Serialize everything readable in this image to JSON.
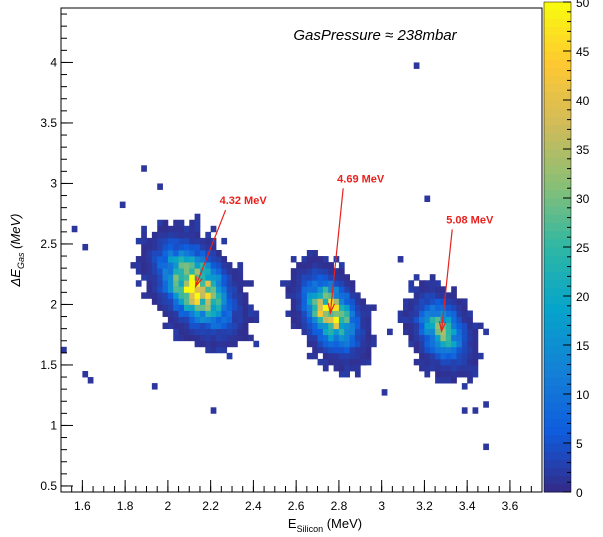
{
  "chart_data": {
    "type": "heatmap",
    "annotation": "GasPressure ≈ 238mbar",
    "xlabel_main": "E",
    "xlabel_sub": "Silicon",
    "xlabel_unit": "(MeV)",
    "ylabel_main": "ΔE",
    "ylabel_sub": "Gas",
    "ylabel_unit": "(MeV)",
    "xlim": [
      1.5,
      3.75
    ],
    "ylim": [
      0.45,
      4.45
    ],
    "xticks": [
      1.6,
      1.8,
      2,
      2.2,
      2.4,
      2.6,
      2.8,
      3,
      3.2,
      3.4,
      3.6
    ],
    "xtick_labels": [
      "1.6",
      "1.8",
      "2",
      "2.2",
      "2.4",
      "2.6",
      "2.8",
      "3",
      "3.2",
      "3.4",
      "3.6"
    ],
    "yticks": [
      0.5,
      1,
      1.5,
      2,
      2.5,
      3,
      3.5,
      4
    ],
    "ytick_labels": [
      "0.5",
      "1",
      "1.5",
      "2",
      "2.5",
      "3",
      "3.5",
      "4"
    ],
    "zlim": [
      0,
      50
    ],
    "zticks": [
      0,
      5,
      10,
      15,
      20,
      25,
      30,
      35,
      40,
      45,
      50
    ],
    "ztick_labels": [
      "0",
      "5",
      "10",
      "15",
      "20",
      "25",
      "30",
      "35",
      "40",
      "45",
      "50"
    ],
    "bin_size": [
      0.025,
      0.05
    ],
    "clusters": [
      {
        "label": "4.32 MeV",
        "x": 2.13,
        "y": 2.15,
        "sx": 0.085,
        "sy": 0.17,
        "rho": -0.45,
        "peak": 46,
        "arrow_from": [
          2.27,
          2.78
        ]
      },
      {
        "label": "4.69 MeV",
        "x": 2.76,
        "y": 1.93,
        "sx": 0.065,
        "sy": 0.15,
        "rho": -0.4,
        "peak": 44,
        "arrow_from": [
          2.82,
          2.96
        ]
      },
      {
        "label": "5.08 MeV",
        "x": 3.28,
        "y": 1.78,
        "sx": 0.06,
        "sy": 0.14,
        "rho": -0.35,
        "peak": 26,
        "arrow_from": [
          3.33,
          2.62
        ]
      }
    ],
    "outliers": [
      [
        3.17,
        3.97
      ],
      [
        3.48,
        0.82
      ],
      [
        3.48,
        1.17
      ],
      [
        3.38,
        1.13
      ],
      [
        3.43,
        1.11
      ],
      [
        2.21,
        1.12
      ],
      [
        3.01,
        1.27
      ],
      [
        1.95,
        1.32
      ],
      [
        1.62,
        1.42
      ],
      [
        1.64,
        1.37
      ],
      [
        1.89,
        3.11
      ],
      [
        1.97,
        2.97
      ],
      [
        1.79,
        2.81
      ],
      [
        3.21,
        2.86
      ],
      [
        3.08,
        2.37
      ],
      [
        1.5,
        1.62
      ],
      [
        1.55,
        2.65
      ],
      [
        2.92,
        1.53
      ],
      [
        3.05,
        1.78
      ],
      [
        1.6,
        2.45
      ]
    ]
  }
}
